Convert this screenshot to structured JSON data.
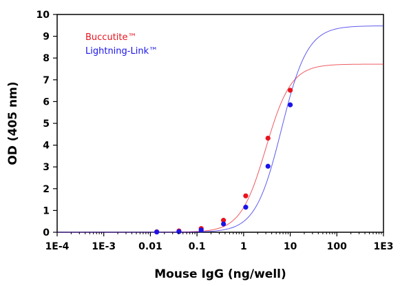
{
  "chart_data": {
    "type": "scatter",
    "title": "",
    "xlabel": "Mouse IgG (ng/well)",
    "ylabel": "OD (405 nm)",
    "x_scale": "log",
    "xlim": [
      0.0001,
      1000
    ],
    "ylim": [
      0,
      10
    ],
    "x_ticks": [
      0.0001,
      0.001,
      0.01,
      0.1,
      1,
      10,
      100,
      1000
    ],
    "x_tick_labels": [
      "1E-4",
      "1E-3",
      "0.01",
      "0.1",
      "1",
      "10",
      "100",
      "1E3"
    ],
    "y_ticks": [
      0,
      1,
      2,
      3,
      4,
      5,
      6,
      7,
      8,
      9,
      10
    ],
    "y_tick_labels": [
      "0",
      "1",
      "2",
      "3",
      "4",
      "5",
      "6",
      "7",
      "8",
      "9",
      "10"
    ],
    "grid": false,
    "legend_position": "top-left",
    "series": [
      {
        "name": "Buccutite™",
        "color": "#e8141e",
        "x": [
          0.0137,
          0.041,
          0.123,
          0.37,
          1.11,
          3.33,
          10
        ],
        "y": [
          0.02,
          0.06,
          0.17,
          0.55,
          1.67,
          4.32,
          6.52
        ],
        "fit": {
          "model": "4PL",
          "bottom": 0.0,
          "top": 7.72,
          "ec50": 3.0,
          "hill": 1.6
        }
      },
      {
        "name": "Lightning-Link™",
        "color": "#1a14e8",
        "x": [
          0.0137,
          0.041,
          0.123,
          0.37,
          1.11,
          3.33,
          10
        ],
        "y": [
          0.01,
          0.03,
          0.1,
          0.38,
          1.15,
          3.03,
          5.85
        ],
        "fit": {
          "model": "4PL",
          "bottom": 0.0,
          "top": 9.48,
          "ec50": 6.5,
          "hill": 1.55
        }
      }
    ]
  }
}
